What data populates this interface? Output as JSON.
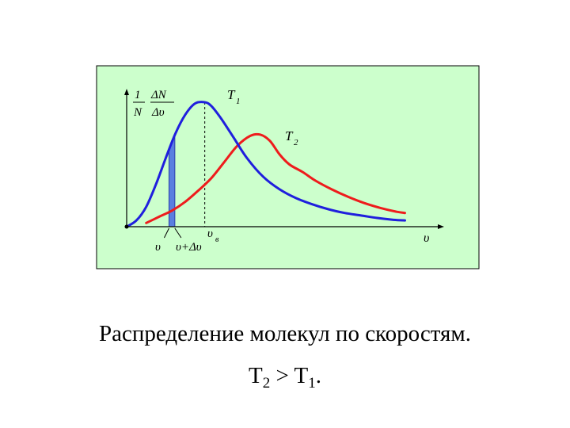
{
  "chart_data": {
    "type": "line",
    "panel_bg": "#ccffcc",
    "ylabel": {
      "num1": "1",
      "den1": "N",
      "num2": "ΔN",
      "den2": "Δυ"
    },
    "xlabel": "υ",
    "xlim": [
      0,
      9
    ],
    "ylim": [
      0,
      1
    ],
    "series": [
      {
        "name": "T",
        "sub": "1",
        "color": "#1f1fdd",
        "x": [
          0,
          0.3,
          0.6,
          0.9,
          1.2,
          1.5,
          1.8,
          2.1,
          2.4,
          2.6,
          2.9,
          3.3,
          3.7,
          4.2,
          4.7,
          5.2,
          5.7,
          6.2,
          6.7,
          7.2,
          7.7,
          8.2,
          8.55
        ],
        "y": [
          0.0,
          0.05,
          0.16,
          0.34,
          0.55,
          0.75,
          0.9,
          0.99,
          1.0,
          0.97,
          0.87,
          0.71,
          0.55,
          0.4,
          0.3,
          0.23,
          0.18,
          0.14,
          0.11,
          0.09,
          0.07,
          0.055,
          0.05
        ]
      },
      {
        "name": "T",
        "sub": "2",
        "color": "#ee1c1c",
        "x": [
          0.6,
          1.0,
          1.4,
          1.8,
          2.2,
          2.6,
          3.0,
          3.4,
          3.8,
          4.1,
          4.4,
          4.7,
          5.0,
          5.4,
          5.8,
          6.3,
          6.8,
          7.3,
          7.8,
          8.3,
          8.55
        ],
        "y": [
          0.03,
          0.08,
          0.13,
          0.2,
          0.29,
          0.39,
          0.52,
          0.65,
          0.73,
          0.74,
          0.69,
          0.58,
          0.5,
          0.44,
          0.37,
          0.3,
          0.24,
          0.19,
          0.15,
          0.12,
          0.11
        ]
      }
    ],
    "band": {
      "x0": 1.3,
      "x1": 1.48,
      "color": "#5a7fe0",
      "label_left": "υ",
      "label_right": "υ+Δυ"
    },
    "peak": {
      "x": 2.4,
      "label": "υ",
      "sub": "в"
    }
  },
  "caption": {
    "line1": "Распределение молекул по скоростям.",
    "t2": "T",
    "t2_sub": "2",
    "gt": " > ",
    "t1": "T",
    "t1_sub": "1",
    "dot": "."
  }
}
